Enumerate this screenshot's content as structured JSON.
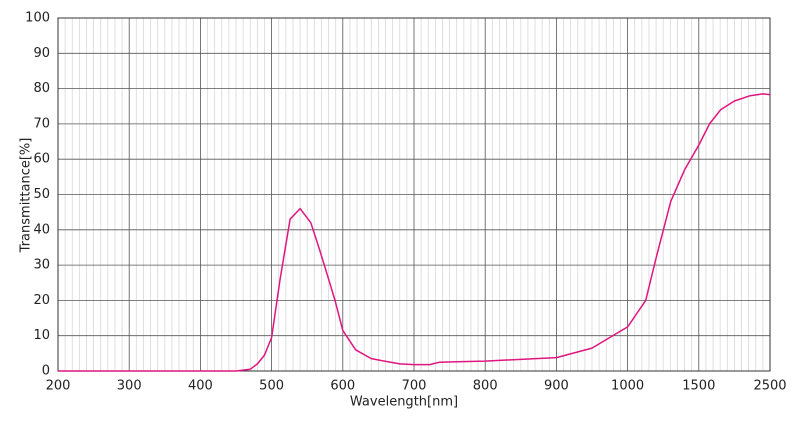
{
  "chart_data": {
    "type": "line",
    "xlabel": "Wavelength[nm]",
    "ylabel": "Transmittance[%]",
    "x": [
      200,
      400,
      450,
      470,
      480,
      490,
      500,
      512,
      526,
      540,
      555,
      568,
      580,
      589,
      600,
      618,
      640,
      653,
      680,
      700,
      722,
      736,
      760,
      800,
      900,
      950,
      1000,
      1060,
      1127,
      1200,
      1303,
      1400,
      1500,
      1650,
      1806,
      2000,
      2222,
      2400,
      2500
    ],
    "series": [
      {
        "name": "Transmittance",
        "color": "#e0157f",
        "values": [
          0,
          0,
          0,
          0.5,
          2,
          4.5,
          9.5,
          26,
          43,
          46,
          42,
          34,
          26,
          20,
          11.5,
          6,
          3.5,
          3,
          2,
          1.8,
          1.8,
          2.5,
          2.6,
          2.8,
          3.8,
          6.5,
          12.5,
          16,
          20,
          32,
          48,
          57,
          64,
          70,
          74,
          76.5,
          78,
          78.5,
          78.3
        ]
      }
    ],
    "xlim": [
      200,
      2500
    ],
    "xticks": [
      200,
      300,
      400,
      500,
      600,
      700,
      800,
      900,
      1000,
      1500,
      2500
    ],
    "ylim": [
      0,
      100
    ],
    "yticks": [
      0,
      10,
      20,
      30,
      40,
      50,
      60,
      70,
      80,
      90,
      100
    ],
    "grid": true
  }
}
